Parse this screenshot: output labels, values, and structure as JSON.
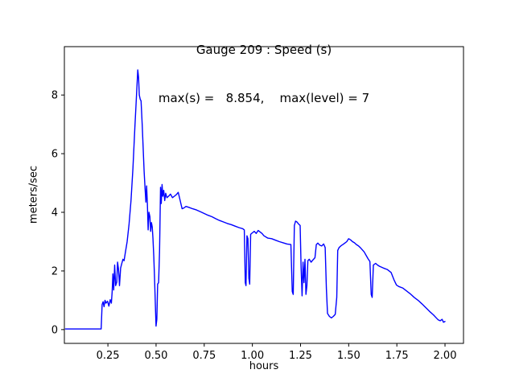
{
  "title": "Gauge 209 : Speed (s)",
  "subtitle": "max(s) =   8.854,    max(level) = 7",
  "chart_data": {
    "type": "line",
    "title": "Gauge 209 : Speed (s)",
    "subtitle": "max(s) =   8.854,    max(level) = 7",
    "xlabel": "hours",
    "ylabel": "meters/sec",
    "max_s": 8.854,
    "max_level": 7,
    "xlim": [
      0.024,
      2.096
    ],
    "ylim": [
      -0.47,
      9.65
    ],
    "xtick_values": [
      0.25,
      0.5,
      0.75,
      1.0,
      1.25,
      1.5,
      1.75,
      2.0
    ],
    "xtick_labels": [
      "0.25",
      "0.50",
      "0.75",
      "1.00",
      "1.25",
      "1.50",
      "1.75",
      "2.00"
    ],
    "ytick_values": [
      0,
      2,
      4,
      6,
      8
    ],
    "ytick_labels": [
      "0",
      "2",
      "4",
      "6",
      "8"
    ],
    "line_color": "#0000ff",
    "legend": "off",
    "grid": "off",
    "series": [
      {
        "name": "speed",
        "points": [
          [
            0.03,
            0.02
          ],
          [
            0.08,
            0.02
          ],
          [
            0.13,
            0.02
          ],
          [
            0.18,
            0.02
          ],
          [
            0.215,
            0.02
          ],
          [
            0.22,
            0.85
          ],
          [
            0.225,
            0.95
          ],
          [
            0.23,
            0.78
          ],
          [
            0.235,
            1.0
          ],
          [
            0.24,
            0.9
          ],
          [
            0.248,
            0.97
          ],
          [
            0.255,
            0.8
          ],
          [
            0.262,
            1.02
          ],
          [
            0.268,
            0.9
          ],
          [
            0.272,
            1.3
          ],
          [
            0.276,
            1.9
          ],
          [
            0.28,
            1.35
          ],
          [
            0.285,
            2.2
          ],
          [
            0.29,
            1.5
          ],
          [
            0.296,
            1.62
          ],
          [
            0.3,
            2.3
          ],
          [
            0.305,
            2.05
          ],
          [
            0.31,
            1.5
          ],
          [
            0.316,
            2.1
          ],
          [
            0.322,
            2.25
          ],
          [
            0.328,
            2.4
          ],
          [
            0.334,
            2.35
          ],
          [
            0.34,
            2.6
          ],
          [
            0.35,
            3.0
          ],
          [
            0.36,
            3.6
          ],
          [
            0.37,
            4.4
          ],
          [
            0.38,
            5.5
          ],
          [
            0.39,
            6.9
          ],
          [
            0.396,
            7.7
          ],
          [
            0.401,
            8.3
          ],
          [
            0.405,
            8.854
          ],
          [
            0.409,
            8.6
          ],
          [
            0.413,
            8.0
          ],
          [
            0.418,
            7.85
          ],
          [
            0.422,
            7.8
          ],
          [
            0.428,
            7.0
          ],
          [
            0.433,
            6.2
          ],
          [
            0.438,
            5.4
          ],
          [
            0.443,
            4.8
          ],
          [
            0.447,
            4.35
          ],
          [
            0.451,
            4.9
          ],
          [
            0.455,
            4.25
          ],
          [
            0.459,
            3.4
          ],
          [
            0.463,
            4.0
          ],
          [
            0.468,
            3.85
          ],
          [
            0.472,
            3.35
          ],
          [
            0.476,
            3.65
          ],
          [
            0.48,
            3.5
          ],
          [
            0.484,
            3.1
          ],
          [
            0.488,
            2.5
          ],
          [
            0.492,
            1.8
          ],
          [
            0.496,
            0.9
          ],
          [
            0.5,
            0.12
          ],
          [
            0.504,
            0.35
          ],
          [
            0.508,
            1.55
          ],
          [
            0.513,
            1.6
          ],
          [
            0.518,
            2.7
          ],
          [
            0.523,
            4.85
          ],
          [
            0.527,
            4.3
          ],
          [
            0.531,
            4.95
          ],
          [
            0.535,
            4.55
          ],
          [
            0.54,
            4.75
          ],
          [
            0.545,
            4.4
          ],
          [
            0.55,
            4.65
          ],
          [
            0.556,
            4.5
          ],
          [
            0.565,
            4.55
          ],
          [
            0.575,
            4.62
          ],
          [
            0.585,
            4.5
          ],
          [
            0.595,
            4.55
          ],
          [
            0.605,
            4.6
          ],
          [
            0.615,
            4.68
          ],
          [
            0.625,
            4.4
          ],
          [
            0.635,
            4.12
          ],
          [
            0.645,
            4.15
          ],
          [
            0.655,
            4.2
          ],
          [
            0.67,
            4.17
          ],
          [
            0.69,
            4.12
          ],
          [
            0.71,
            4.08
          ],
          [
            0.73,
            4.02
          ],
          [
            0.75,
            3.96
          ],
          [
            0.77,
            3.9
          ],
          [
            0.79,
            3.85
          ],
          [
            0.81,
            3.78
          ],
          [
            0.83,
            3.72
          ],
          [
            0.85,
            3.67
          ],
          [
            0.87,
            3.62
          ],
          [
            0.89,
            3.58
          ],
          [
            0.91,
            3.53
          ],
          [
            0.93,
            3.48
          ],
          [
            0.95,
            3.44
          ],
          [
            0.958,
            3.4
          ],
          [
            0.963,
            1.6
          ],
          [
            0.967,
            1.5
          ],
          [
            0.972,
            3.2
          ],
          [
            0.977,
            3.1
          ],
          [
            0.982,
            1.75
          ],
          [
            0.986,
            1.55
          ],
          [
            0.991,
            3.25
          ],
          [
            1.0,
            3.3
          ],
          [
            1.01,
            3.35
          ],
          [
            1.02,
            3.28
          ],
          [
            1.03,
            3.38
          ],
          [
            1.04,
            3.33
          ],
          [
            1.05,
            3.28
          ],
          [
            1.06,
            3.2
          ],
          [
            1.08,
            3.12
          ],
          [
            1.1,
            3.1
          ],
          [
            1.12,
            3.05
          ],
          [
            1.14,
            3.0
          ],
          [
            1.16,
            2.96
          ],
          [
            1.18,
            2.92
          ],
          [
            1.2,
            2.9
          ],
          [
            1.207,
            1.3
          ],
          [
            1.212,
            1.2
          ],
          [
            1.218,
            3.55
          ],
          [
            1.224,
            3.7
          ],
          [
            1.23,
            3.68
          ],
          [
            1.24,
            3.6
          ],
          [
            1.248,
            3.55
          ],
          [
            1.253,
            2.1
          ],
          [
            1.258,
            1.15
          ],
          [
            1.263,
            2.3
          ],
          [
            1.268,
            1.6
          ],
          [
            1.273,
            2.4
          ],
          [
            1.278,
            1.2
          ],
          [
            1.283,
            1.5
          ],
          [
            1.288,
            2.35
          ],
          [
            1.295,
            2.4
          ],
          [
            1.305,
            2.3
          ],
          [
            1.315,
            2.38
          ],
          [
            1.325,
            2.45
          ],
          [
            1.332,
            2.9
          ],
          [
            1.34,
            2.95
          ],
          [
            1.35,
            2.88
          ],
          [
            1.36,
            2.85
          ],
          [
            1.37,
            2.92
          ],
          [
            1.378,
            2.8
          ],
          [
            1.384,
            1.4
          ],
          [
            1.39,
            0.55
          ],
          [
            1.4,
            0.45
          ],
          [
            1.41,
            0.4
          ],
          [
            1.42,
            0.45
          ],
          [
            1.43,
            0.52
          ],
          [
            1.438,
            1.1
          ],
          [
            1.443,
            2.7
          ],
          [
            1.45,
            2.8
          ],
          [
            1.46,
            2.86
          ],
          [
            1.47,
            2.9
          ],
          [
            1.48,
            2.95
          ],
          [
            1.49,
            3.0
          ],
          [
            1.5,
            3.1
          ],
          [
            1.51,
            3.06
          ],
          [
            1.52,
            3.0
          ],
          [
            1.53,
            2.96
          ],
          [
            1.54,
            2.9
          ],
          [
            1.55,
            2.86
          ],
          [
            1.56,
            2.8
          ],
          [
            1.58,
            2.65
          ],
          [
            1.6,
            2.42
          ],
          [
            1.61,
            2.32
          ],
          [
            1.617,
            1.2
          ],
          [
            1.622,
            1.1
          ],
          [
            1.628,
            2.2
          ],
          [
            1.64,
            2.26
          ],
          [
            1.65,
            2.2
          ],
          [
            1.66,
            2.16
          ],
          [
            1.68,
            2.1
          ],
          [
            1.7,
            2.05
          ],
          [
            1.72,
            1.95
          ],
          [
            1.735,
            1.7
          ],
          [
            1.748,
            1.52
          ],
          [
            1.76,
            1.47
          ],
          [
            1.78,
            1.42
          ],
          [
            1.8,
            1.32
          ],
          [
            1.82,
            1.22
          ],
          [
            1.84,
            1.1
          ],
          [
            1.86,
            1.0
          ],
          [
            1.88,
            0.88
          ],
          [
            1.9,
            0.75
          ],
          [
            1.92,
            0.62
          ],
          [
            1.94,
            0.5
          ],
          [
            1.955,
            0.4
          ],
          [
            1.965,
            0.33
          ],
          [
            1.975,
            0.3
          ],
          [
            1.985,
            0.35
          ],
          [
            1.992,
            0.25
          ],
          [
            2.0,
            0.28
          ]
        ]
      }
    ]
  }
}
